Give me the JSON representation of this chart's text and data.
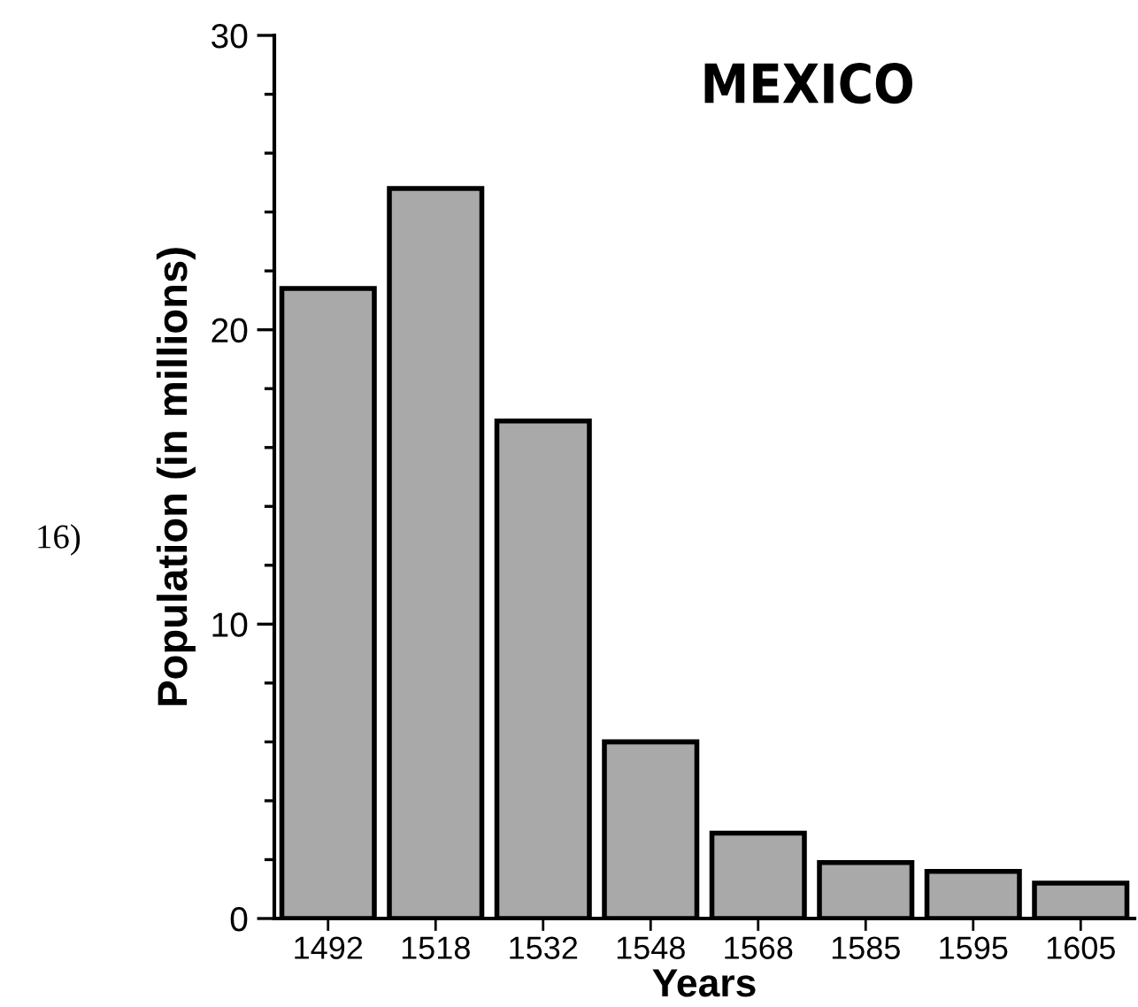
{
  "chart_data": {
    "type": "bar",
    "title": "MEXICO",
    "xlabel": "Years",
    "ylabel": "Population (in millions)",
    "categories": [
      "1492",
      "1518",
      "1532",
      "1548",
      "1568",
      "1585",
      "1595",
      "1605"
    ],
    "values": [
      21.4,
      24.8,
      16.9,
      6.0,
      2.9,
      1.9,
      1.6,
      1.2
    ],
    "color": "#a9a9a9",
    "ylim": [
      0,
      30
    ],
    "yticks": [
      0,
      {
        "value": 2,
        "label": null
      },
      {
        "value": 4,
        "label": null
      },
      {
        "value": 6,
        "label": null
      },
      {
        "value": 8,
        "label": null
      },
      10,
      {
        "value": 12,
        "label": null
      },
      {
        "value": 14,
        "label": null
      },
      {
        "value": 16,
        "label": null
      },
      {
        "value": 18,
        "label": null
      },
      20,
      {
        "value": 22,
        "label": null
      },
      {
        "value": 24,
        "label": null
      },
      {
        "value": 26,
        "label": null
      },
      {
        "value": 28,
        "label": null
      },
      30
    ],
    "annotations": [
      "16)"
    ],
    "grid": false
  }
}
